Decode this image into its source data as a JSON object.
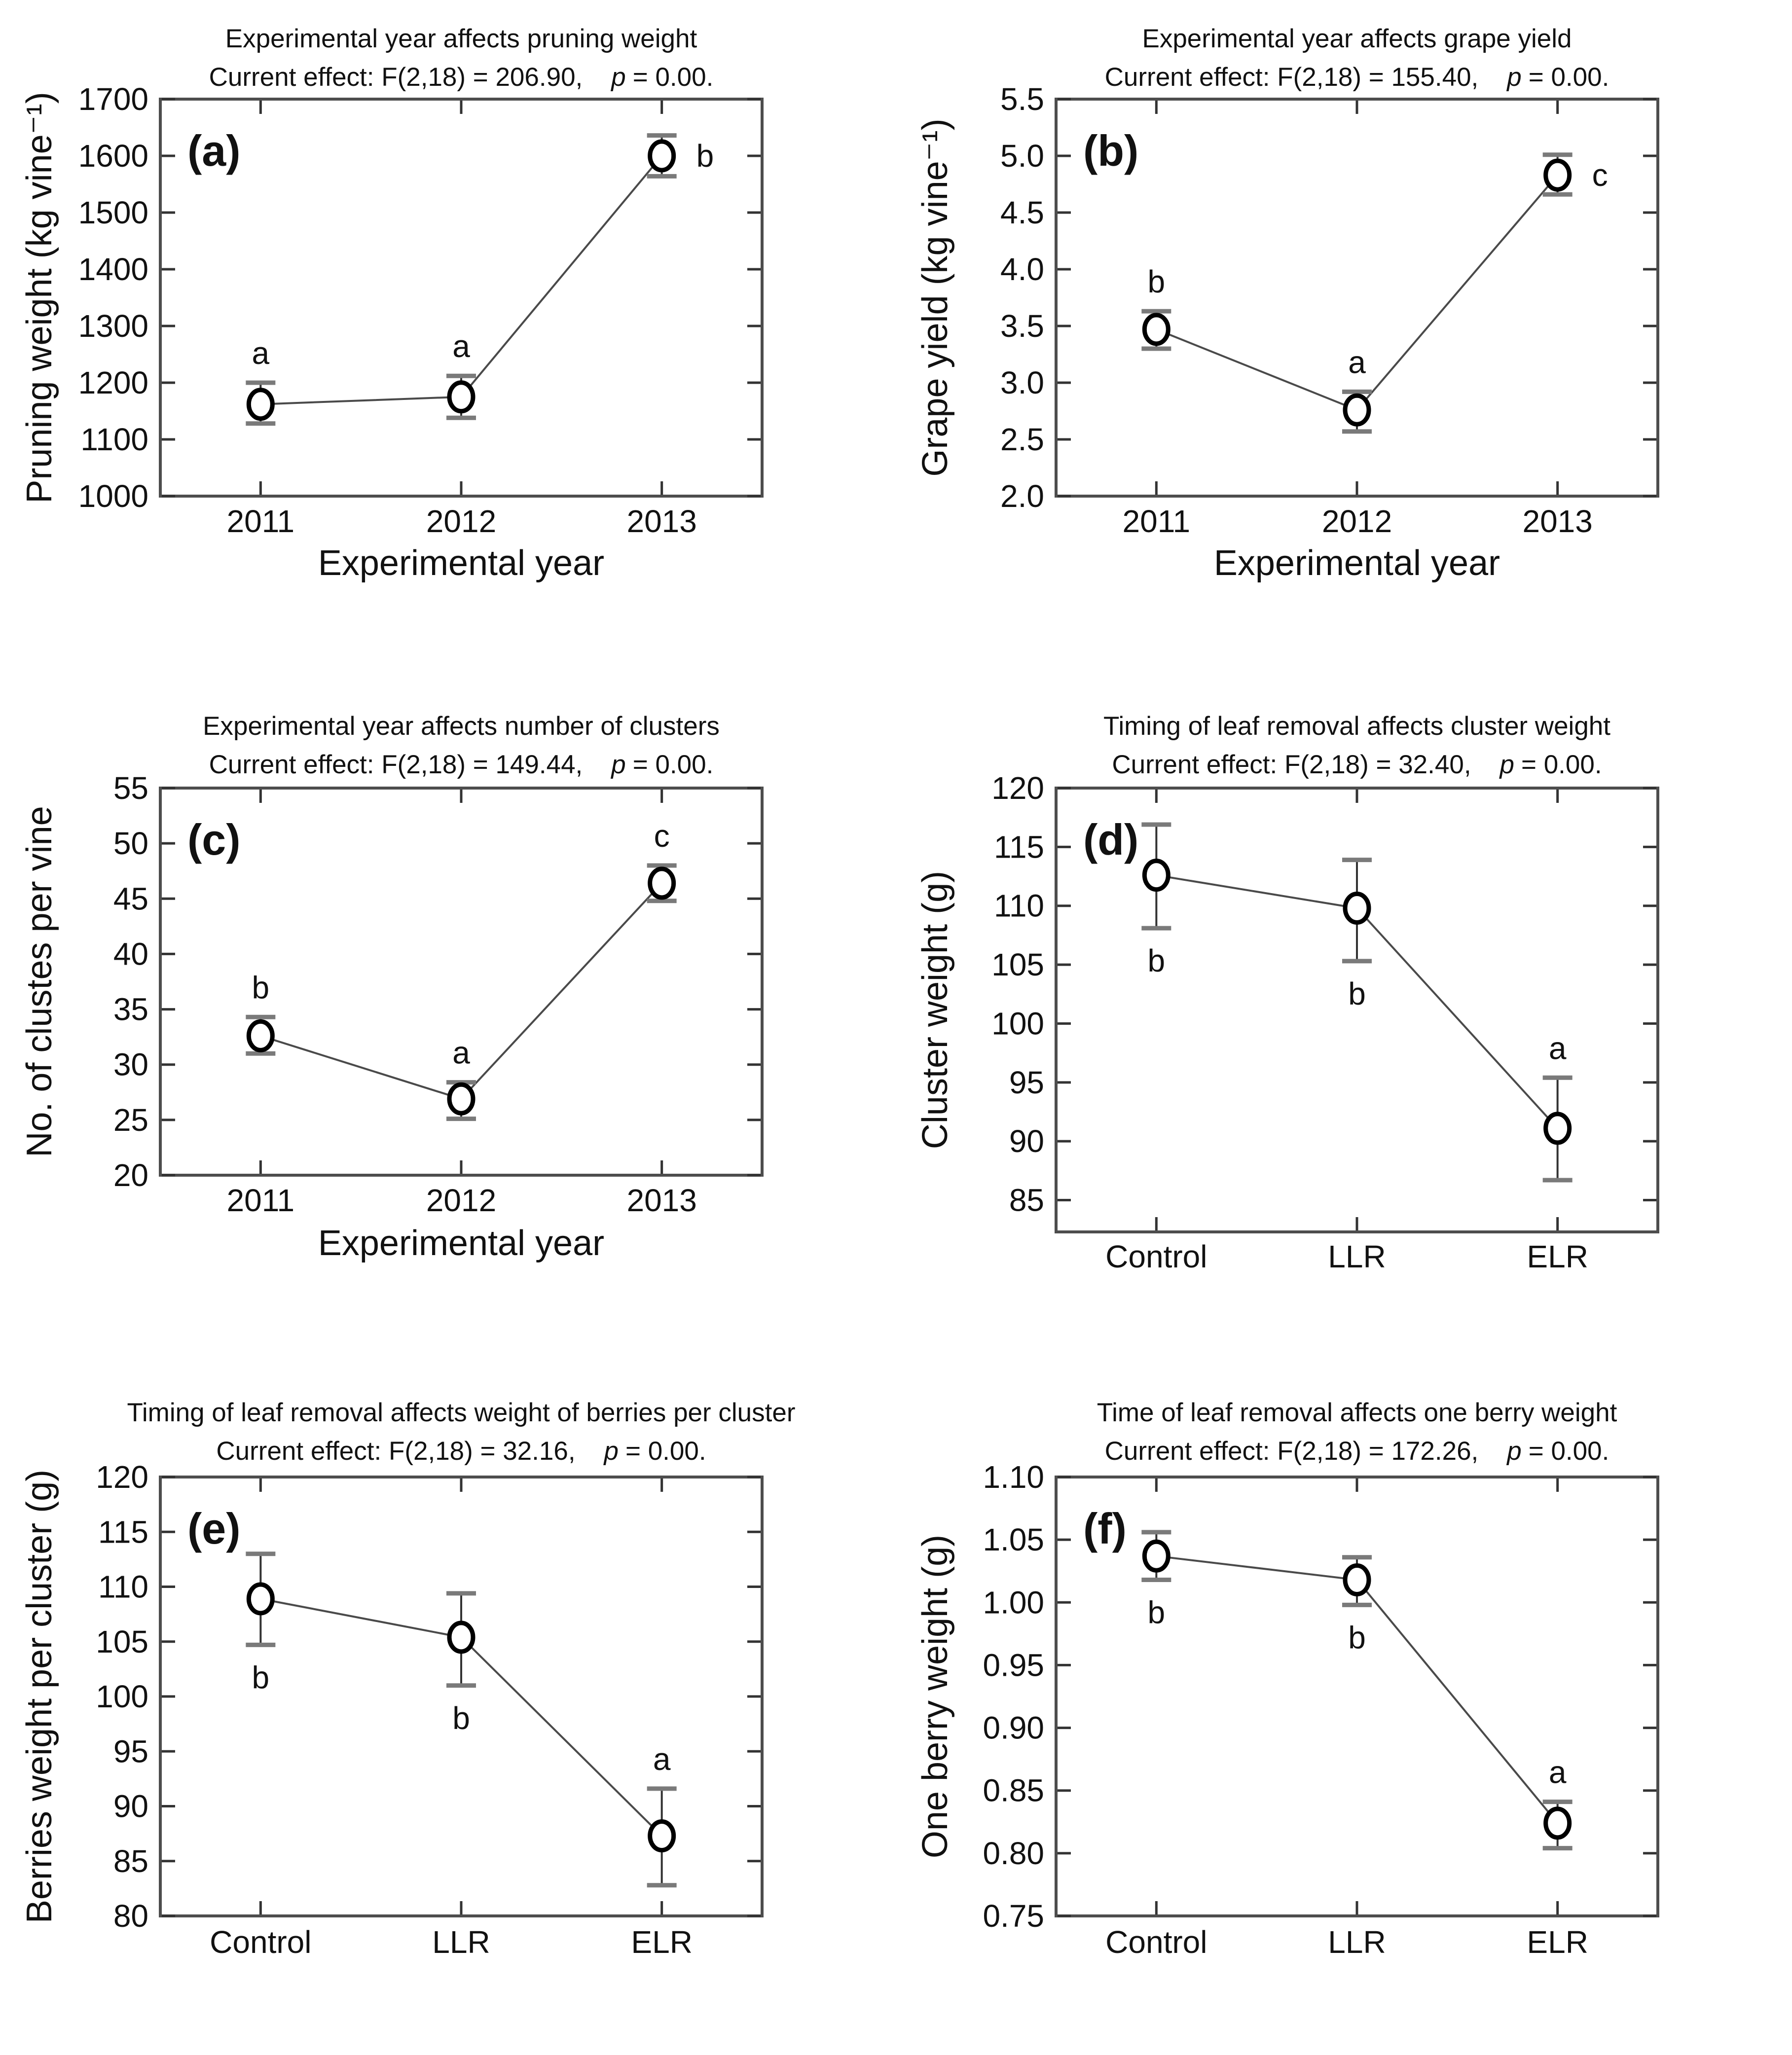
{
  "chart_data": [
    {
      "type": "line",
      "panel_label": "(a)",
      "title": "Experimental year affects pruning weight",
      "subtitle": {
        "prefix": "Current effect: F(2,18) = 206.90,",
        "p": "p",
        "rest": "= 0.00."
      },
      "xlabel": "Experimental year",
      "ylabel": "Pruning weight (kg vine⁻¹)",
      "categories": [
        "2011",
        "2012",
        "2013"
      ],
      "values": [
        1162,
        1175,
        1600
      ],
      "err_low": [
        1128,
        1138,
        1564
      ],
      "err_high": [
        1200,
        1212,
        1636
      ],
      "sig_letters": [
        "a",
        "a",
        "b"
      ],
      "sig_positions": [
        "above",
        "above",
        "right"
      ],
      "ylim": [
        1000,
        1700
      ],
      "yticks": [
        1000,
        1100,
        1200,
        1300,
        1400,
        1500,
        1600,
        1700
      ],
      "ytick_labels": [
        "1000",
        "1100",
        "1200",
        "1300",
        "1400",
        "1500",
        "1600",
        "1700"
      ],
      "grid": false,
      "marker": "open-circle",
      "legend": "none"
    },
    {
      "type": "line",
      "panel_label": "(b)",
      "title": "Experimental year affects grape yield",
      "subtitle": {
        "prefix": "Current effect: F(2,18) = 155.40,",
        "p": "p",
        "rest": "= 0.00."
      },
      "xlabel": "Experimental year",
      "ylabel": "Grape yield (kg vine⁻¹)",
      "categories": [
        "2011",
        "2012",
        "2013"
      ],
      "values": [
        3.47,
        2.76,
        4.83
      ],
      "err_low": [
        3.3,
        2.57,
        4.66
      ],
      "err_high": [
        3.63,
        2.92,
        5.01
      ],
      "sig_letters": [
        "b",
        "a",
        "c"
      ],
      "sig_positions": [
        "above",
        "above",
        "right"
      ],
      "ylim": [
        2.0,
        5.5
      ],
      "yticks": [
        2.0,
        2.5,
        3.0,
        3.5,
        4.0,
        4.5,
        5.0,
        5.5
      ],
      "ytick_labels": [
        "2.0",
        "2.5",
        "3.0",
        "3.5",
        "4.0",
        "4.5",
        "5.0",
        "5.5"
      ],
      "grid": false,
      "marker": "open-circle",
      "legend": "none"
    },
    {
      "type": "line",
      "panel_label": "(c)",
      "title": "Experimental year affects number of clusters",
      "subtitle": {
        "prefix": "Current effect: F(2,18) = 149.44,",
        "p": "p",
        "rest": "= 0.00."
      },
      "xlabel": "Experimental year",
      "ylabel": "No. of clustes per vine",
      "categories": [
        "2011",
        "2012",
        "2013"
      ],
      "values": [
        32.6,
        26.9,
        46.4
      ],
      "err_low": [
        31.0,
        25.1,
        44.8
      ],
      "err_high": [
        34.3,
        28.4,
        48.0
      ],
      "sig_letters": [
        "b",
        "a",
        "c"
      ],
      "sig_positions": [
        "above",
        "above",
        "above"
      ],
      "ylim": [
        20,
        55
      ],
      "yticks": [
        20,
        25,
        30,
        35,
        40,
        45,
        50,
        55
      ],
      "ytick_labels": [
        "20",
        "25",
        "30",
        "35",
        "40",
        "45",
        "50",
        "55"
      ],
      "grid": false,
      "marker": "open-circle",
      "legend": "none"
    },
    {
      "type": "line",
      "panel_label": "(d)",
      "title": "Timing of leaf removal affects cluster weight",
      "subtitle": {
        "prefix": "Current effect: F(2,18) = 32.40,",
        "p": "p",
        "rest": "= 0.00."
      },
      "xlabel": "",
      "ylabel": "Cluster weight (g)",
      "categories": [
        "Control",
        "LLR",
        "ELR"
      ],
      "values": [
        112.6,
        109.8,
        91.1
      ],
      "err_low": [
        108.1,
        105.3,
        86.7
      ],
      "err_high": [
        116.9,
        113.9,
        95.4
      ],
      "sig_letters": [
        "b",
        "b",
        "a"
      ],
      "sig_positions": [
        "below",
        "below",
        "above"
      ],
      "ylim": [
        82.3,
        120
      ],
      "yticks": [
        85,
        90,
        95,
        100,
        105,
        110,
        115,
        120
      ],
      "ytick_labels": [
        "85",
        "90",
        "95",
        "100",
        "105",
        "110",
        "115",
        "120"
      ],
      "grid": false,
      "marker": "open-circle",
      "legend": "none"
    },
    {
      "type": "line",
      "panel_label": "(e)",
      "title": "Timing of leaf removal affects weight of berries per cluster",
      "subtitle": {
        "prefix": "Current effect: F(2,18) = 32.16,",
        "p": "p",
        "rest": "= 0.00."
      },
      "xlabel": "",
      "ylabel": "Berries weight per cluster (g)",
      "categories": [
        "Control",
        "LLR",
        "ELR"
      ],
      "values": [
        108.9,
        105.4,
        87.3
      ],
      "err_low": [
        104.7,
        101.0,
        82.8
      ],
      "err_high": [
        113.0,
        109.4,
        91.6
      ],
      "sig_letters": [
        "b",
        "b",
        "a"
      ],
      "sig_positions": [
        "below",
        "below",
        "above"
      ],
      "ylim": [
        80,
        120
      ],
      "yticks": [
        80,
        85,
        90,
        95,
        100,
        105,
        110,
        115,
        120
      ],
      "ytick_labels": [
        "80",
        "85",
        "90",
        "95",
        "100",
        "105",
        "110",
        "115",
        "120"
      ],
      "grid": false,
      "marker": "open-circle",
      "legend": "none"
    },
    {
      "type": "line",
      "panel_label": "(f)",
      "title": "Time of leaf removal affects one berry weight",
      "subtitle": {
        "prefix": "Current effect: F(2,18) = 172.26,",
        "p": "p",
        "rest": "= 0.00."
      },
      "xlabel": "",
      "ylabel": "One berry weight (g)",
      "categories": [
        "Control",
        "LLR",
        "ELR"
      ],
      "values": [
        1.037,
        1.018,
        0.824
      ],
      "err_low": [
        1.018,
        0.998,
        0.804
      ],
      "err_high": [
        1.056,
        1.036,
        0.841
      ],
      "sig_letters": [
        "b",
        "b",
        "a"
      ],
      "sig_positions": [
        "below",
        "below",
        "above"
      ],
      "ylim": [
        0.75,
        1.1
      ],
      "yticks": [
        0.75,
        0.8,
        0.85,
        0.9,
        0.95,
        1.0,
        1.05,
        1.1
      ],
      "ytick_labels": [
        "0.75",
        "0.80",
        "0.85",
        "0.90",
        "0.95",
        "1.00",
        "1.05",
        "1.10"
      ],
      "grid": false,
      "marker": "open-circle",
      "legend": "none"
    }
  ],
  "style": {
    "frame_color": "#4d4d4d",
    "line_color": "#4a4a4a",
    "marker_stroke": "#000000",
    "marker_fill": "#ffffff",
    "error_line_color": "#333333",
    "error_cap_color": "#7a7a7a",
    "text_color": "#111111",
    "background": "#ffffff"
  }
}
